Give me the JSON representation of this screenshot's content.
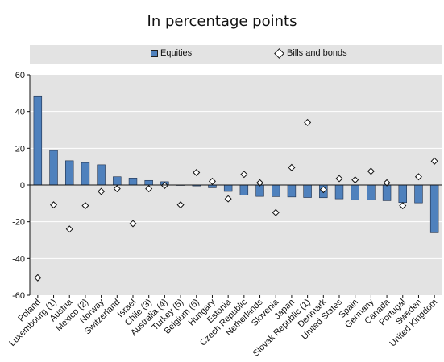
{
  "title": "In percentage points",
  "colors": {
    "bar": "#4f81bd",
    "bar_edge": "#1f2f4a",
    "plot_bg": "#e3e3e3",
    "grid": "#ffffff"
  },
  "chart_data": {
    "type": "bar",
    "categories": [
      "Poland",
      "Luxembourg (1)",
      "Austria",
      "Mexico (2)",
      "Norway",
      "Switzerland",
      "Israel",
      "Chile (3)",
      "Australia (4)",
      "Turkey (5)",
      "Belgium (6)",
      "Hungary",
      "Estonia",
      "Czech Republic",
      "Netherlands",
      "Slovenia",
      "Japan",
      "Slovak Republic (1)",
      "Denmark",
      "United States",
      "Spain",
      "Germany",
      "Canada",
      "Portugal",
      "Sweden",
      "United Kingdom"
    ],
    "series": [
      {
        "name": "Equities",
        "style": "bar",
        "values": [
          48.5,
          18.8,
          13.2,
          12.2,
          11.0,
          4.5,
          3.8,
          2.5,
          1.8,
          0.0,
          -0.5,
          -1.5,
          -3.5,
          -5.5,
          -6.2,
          -6.3,
          -6.5,
          -6.8,
          -6.9,
          -7.5,
          -8.0,
          -8.0,
          -8.5,
          -9.5,
          -9.7,
          -26.0
        ]
      },
      {
        "name": "Bills and bonds",
        "style": "diamond",
        "values": [
          -50.5,
          -10.8,
          -24.0,
          -11.2,
          -3.5,
          -2.0,
          -21.0,
          -2.0,
          -0.2,
          -10.8,
          6.8,
          2.0,
          -7.5,
          5.8,
          1.2,
          -15.0,
          9.5,
          34.0,
          -2.5,
          3.5,
          2.8,
          7.5,
          1.2,
          -11.2,
          4.5,
          13.0
        ]
      }
    ],
    "xlabel": "",
    "ylabel": "",
    "ylim": [
      -60,
      60
    ],
    "yticks": [
      -60,
      -40,
      -20,
      0,
      20,
      40,
      60
    ],
    "legend": {
      "position": "top",
      "entries": [
        "Equities",
        "Bills and bonds"
      ]
    }
  }
}
